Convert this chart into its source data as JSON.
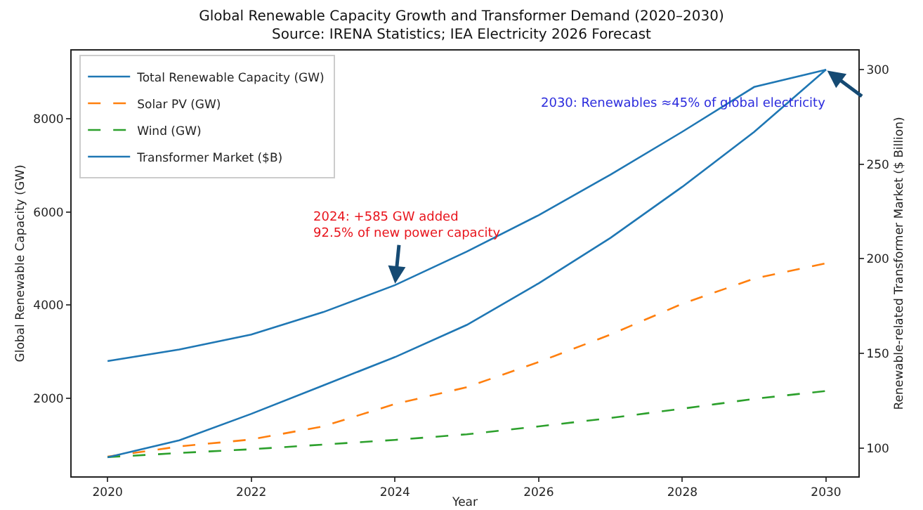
{
  "chart_data": {
    "type": "line",
    "title": "Global Renewable Capacity Growth and Transformer Demand (2020–2030)",
    "subtitle": "Source: IRENA Statistics; IEA Electricity 2026 Forecast",
    "xlabel": "Year",
    "ylabel": "Global Renewable Capacity (GW)",
    "y2label": "Renewable-related Transformer Market ($ Billion)",
    "x": [
      2020,
      2021,
      2022,
      2023,
      2024,
      2025,
      2026,
      2027,
      2028,
      2029,
      2030
    ],
    "series": [
      {
        "name": "Total Renewable Capacity (GW)",
        "color": "#1f77b4",
        "line_style": "solid",
        "values": [
          2800,
          3050,
          3370,
          3850,
          4430,
          5150,
          5930,
          6800,
          7720,
          8680,
          9050
        ]
      },
      {
        "name": "Solar PV (GW)",
        "color": "#ff7f0e",
        "line_style": "dashed",
        "values": [
          750,
          970,
          1120,
          1400,
          1880,
          2240,
          2780,
          3370,
          4030,
          4570,
          4900
        ]
      },
      {
        "name": "Wind (GW)",
        "color": "#2ca02c",
        "line_style": "dashed",
        "values": [
          740,
          830,
          910,
          1010,
          1110,
          1230,
          1400,
          1580,
          1780,
          1990,
          2160
        ]
      },
      {
        "name": "Transformer Market ($B)",
        "color": "#1f77b4",
        "line_style": "solid",
        "axis": "y2",
        "values": [
          95,
          104,
          118,
          133,
          148,
          165,
          187,
          211,
          238,
          267,
          300
        ]
      }
    ],
    "xlim": [
      2019.5,
      2030.45
    ],
    "xticks": [
      2020,
      2022,
      2024,
      2026,
      2028,
      2030
    ],
    "ylim": [
      330,
      9460
    ],
    "yticks": [
      2000,
      4000,
      6000,
      8000
    ],
    "y2lim": [
      85,
      310
    ],
    "y2ticks": [
      100,
      150,
      200,
      250,
      300
    ],
    "annotations": [
      {
        "text": "2024: +585 GW added\n92.5% of new power capacity",
        "x": 2024,
        "y": 4430
      },
      {
        "text": "2030: Renewables ≈45% of global electricity",
        "x": 2030,
        "y": 9050
      }
    ],
    "grid": false,
    "legend": "top left",
    "marker": "none"
  }
}
